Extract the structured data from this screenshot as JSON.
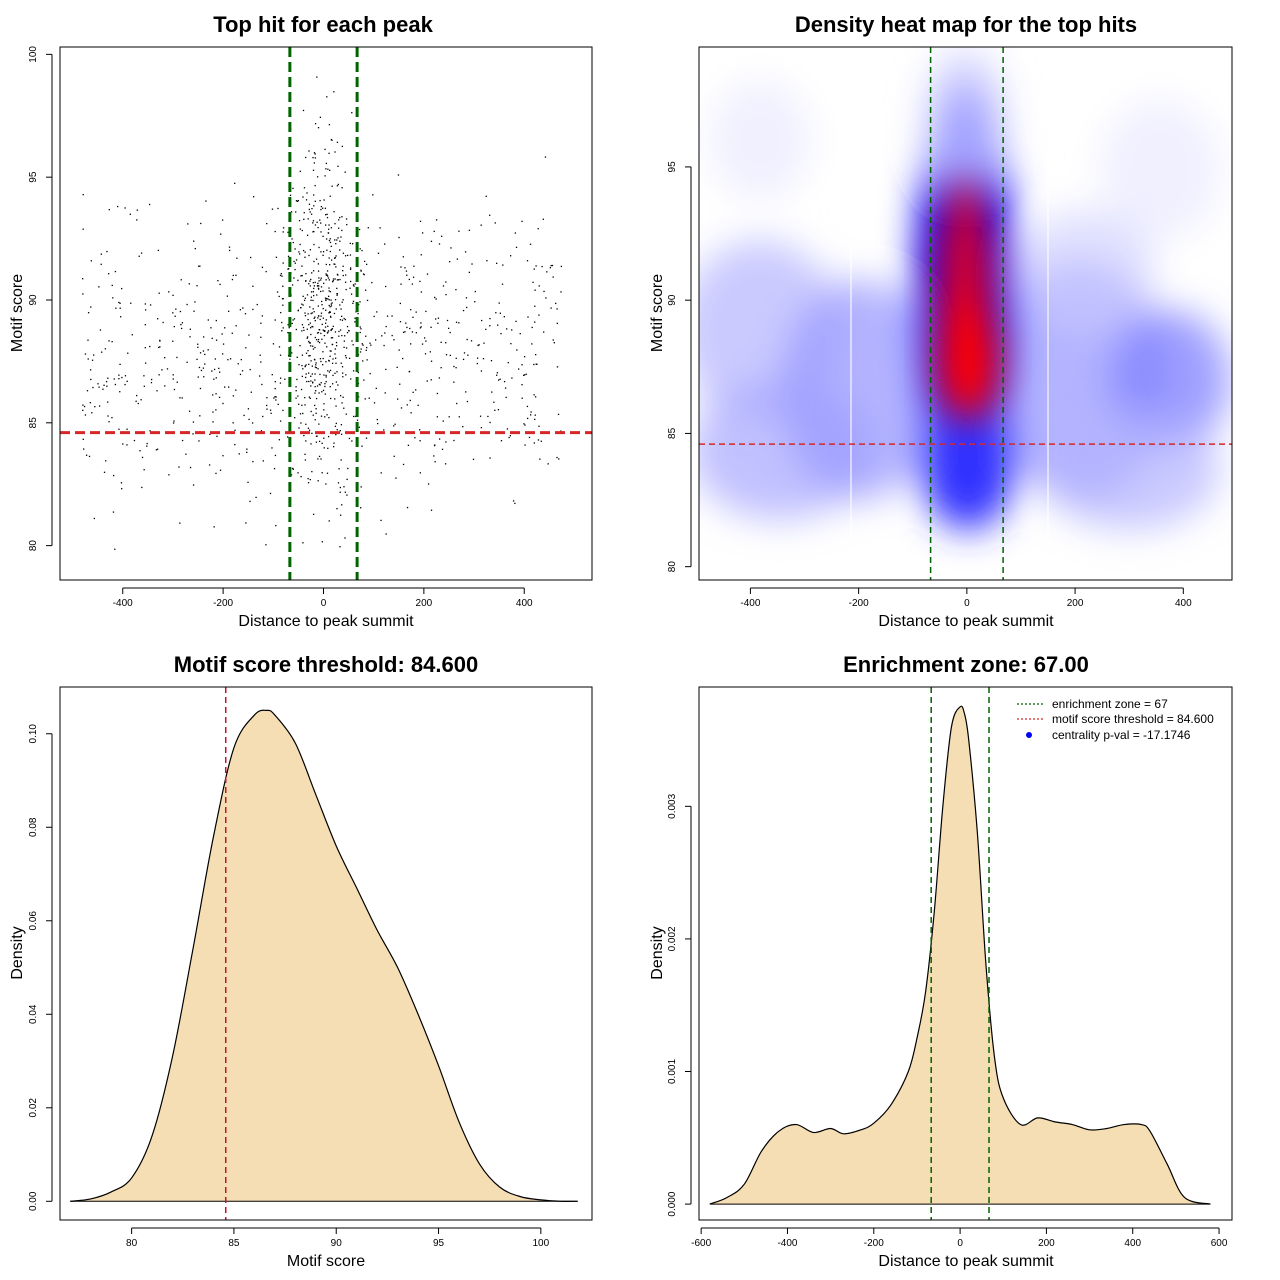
{
  "chart_data": [
    {
      "type": "scatter",
      "title": "Top hit for each peak",
      "xlabel": "Distance to peak summit",
      "ylabel": "Motif score",
      "xlim": [
        -525,
        535
      ],
      "ylim": [
        78.6,
        100.3
      ],
      "xticks": [
        "-400",
        "-200",
        "0",
        "200",
        "400"
      ],
      "yticks": [
        "80",
        "85",
        "90",
        "95",
        "100"
      ],
      "xtick_values": [
        -400,
        -200,
        0,
        200,
        400
      ],
      "ytick_values": [
        80,
        85,
        90,
        95,
        100
      ],
      "vlines": [
        -67,
        67
      ],
      "hline": 84.6,
      "colors": {
        "points": "#000000",
        "vline": "#006400",
        "hline": "#d62728"
      }
    },
    {
      "type": "heatmap",
      "title": "Density heat map for the top hits",
      "xlabel": "Distance to peak summit",
      "ylabel": "Motif score",
      "xlim": [
        -495,
        490
      ],
      "ylim": [
        79.5,
        99.5
      ],
      "xticks": [
        "-400",
        "-200",
        "0",
        "200",
        "400"
      ],
      "yticks": [
        "80",
        "85",
        "90",
        "95"
      ],
      "xtick_values": [
        -400,
        -200,
        0,
        200,
        400
      ],
      "ytick_values": [
        80,
        85,
        90,
        95
      ],
      "vlines": [
        -67,
        67
      ],
      "hline": 84.6,
      "colors": {
        "low": "#ffffff",
        "mid": "#0000ff",
        "high": "#ff0000"
      }
    },
    {
      "type": "area",
      "title": "Motif score threshold: 84.600",
      "xlabel": "Motif score",
      "ylabel": "Density",
      "xlim": [
        76.5,
        102.5
      ],
      "ylim": [
        -0.004,
        0.11
      ],
      "xticks": [
        "80",
        "85",
        "90",
        "95",
        "100"
      ],
      "yticks": [
        "0.00",
        "0.02",
        "0.04",
        "0.06",
        "0.08",
        "0.10"
      ],
      "xtick_values": [
        80,
        85,
        90,
        95,
        100
      ],
      "ytick_values": [
        0,
        0.02,
        0.04,
        0.06,
        0.08,
        0.1
      ],
      "x": [
        77,
        78,
        79,
        80,
        81,
        82,
        83,
        84,
        85,
        86,
        86.6,
        87,
        88,
        89,
        90,
        91,
        92,
        93,
        94,
        95,
        96,
        97,
        98,
        99,
        100,
        101,
        101.8
      ],
      "y": [
        0,
        0.0005,
        0.002,
        0.005,
        0.014,
        0.031,
        0.054,
        0.078,
        0.097,
        0.104,
        0.105,
        0.104,
        0.098,
        0.087,
        0.076,
        0.067,
        0.058,
        0.05,
        0.04,
        0.029,
        0.017,
        0.008,
        0.003,
        0.001,
        0.0003,
        0,
        0
      ],
      "vline": 84.6,
      "colors": {
        "fill": "#f5deb3",
        "line": "#000000",
        "vline": "#c8102e"
      }
    },
    {
      "type": "area",
      "title": "Enrichment zone: 67.00",
      "xlabel": "Distance to peak summit",
      "ylabel": "Density",
      "xlim": [
        -605,
        630
      ],
      "ylim": [
        -0.00012,
        0.0039
      ],
      "xticks": [
        "-600",
        "-400",
        "-200",
        "0",
        "200",
        "400",
        "600"
      ],
      "yticks": [
        "0.000",
        "0.001",
        "0.002",
        "0.003"
      ],
      "xtick_values": [
        -600,
        -400,
        -200,
        0,
        200,
        400,
        600
      ],
      "ytick_values": [
        0,
        0.001,
        0.002,
        0.003
      ],
      "x": [
        -580,
        -540,
        -500,
        -460,
        -420,
        -380,
        -340,
        -300,
        -270,
        -230,
        -200,
        -160,
        -120,
        -100,
        -80,
        -60,
        -40,
        -20,
        0,
        10,
        20,
        40,
        60,
        80,
        100,
        140,
        180,
        220,
        260,
        300,
        340,
        380,
        420,
        440,
        480,
        520,
        580
      ],
      "y": [
        0,
        5e-05,
        0.00015,
        0.0004,
        0.00055,
        0.0006,
        0.00054,
        0.00057,
        0.00053,
        0.00056,
        0.00061,
        0.00075,
        0.001,
        0.00125,
        0.0016,
        0.0022,
        0.003,
        0.0036,
        0.00375,
        0.0037,
        0.0035,
        0.0028,
        0.0018,
        0.0011,
        0.0008,
        0.0006,
        0.00065,
        0.00062,
        0.0006,
        0.00056,
        0.00057,
        0.0006,
        0.0006,
        0.00055,
        0.0003,
        5e-05,
        0
      ],
      "vlines": [
        -67,
        67
      ],
      "legend": [
        {
          "label": "enrichment zone = 67",
          "color": "#006400",
          "style": "dotted-line"
        },
        {
          "label": "motif score threshold = 84.600",
          "color": "#d62728",
          "style": "dotted-line"
        },
        {
          "label": "centrality p-val = -17.1746",
          "color": "#0000ff",
          "style": "dot"
        }
      ],
      "legend_position": "top-right",
      "colors": {
        "fill": "#f5deb3",
        "line": "#000000",
        "vline": "#006400"
      }
    }
  ]
}
